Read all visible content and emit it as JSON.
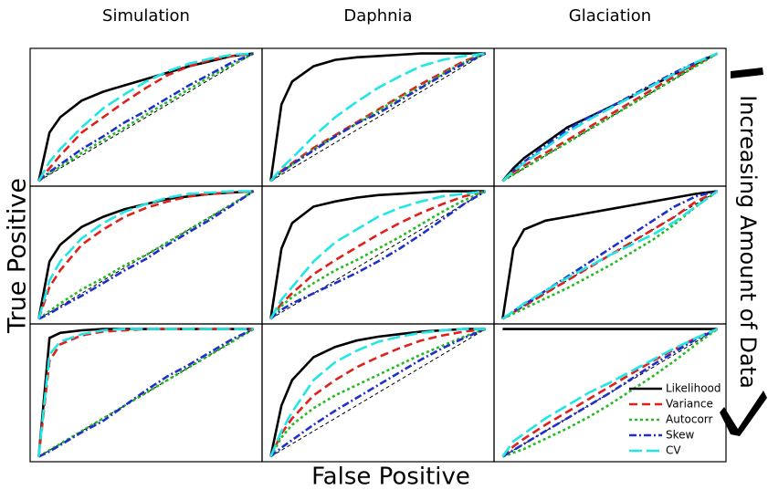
{
  "x_label": "False Positive",
  "y_label": "True Positive",
  "side_label": "Increasing Amount of Data",
  "chart_data": [
    {
      "type": "line",
      "title": "Simulation",
      "xlim": [
        -0.04,
        1.04
      ],
      "ylim": [
        -0.04,
        1.04
      ],
      "x": [
        0,
        0.05,
        0.1,
        0.2,
        0.3,
        0.4,
        0.5,
        0.6,
        0.7,
        0.8,
        0.9,
        1
      ],
      "series": [
        {
          "color": "#000000",
          "dash": "solid",
          "values": [
            0,
            0.38,
            0.5,
            0.63,
            0.7,
            0.75,
            0.8,
            0.85,
            0.9,
            0.94,
            0.98,
            1
          ]
        },
        {
          "color": "#e0201b",
          "dash": "dashed",
          "values": [
            0,
            0.1,
            0.2,
            0.38,
            0.5,
            0.62,
            0.73,
            0.83,
            0.9,
            0.95,
            0.98,
            1
          ]
        },
        {
          "color": "#22bb22",
          "dash": "dotted",
          "values": [
            0,
            0.06,
            0.11,
            0.22,
            0.32,
            0.42,
            0.52,
            0.62,
            0.72,
            0.82,
            0.91,
            1
          ]
        },
        {
          "color": "#1f2fcc",
          "dash": "dashdot",
          "values": [
            0,
            0.07,
            0.13,
            0.25,
            0.35,
            0.46,
            0.55,
            0.65,
            0.75,
            0.84,
            0.93,
            1
          ]
        },
        {
          "color": "#22e5e5",
          "dash": "longdash",
          "values": [
            0,
            0.15,
            0.25,
            0.42,
            0.57,
            0.68,
            0.78,
            0.86,
            0.92,
            0.96,
            0.99,
            1
          ]
        }
      ]
    },
    {
      "type": "line",
      "title": "Daphnia",
      "xlim": [
        -0.04,
        1.04
      ],
      "ylim": [
        -0.04,
        1.04
      ],
      "x": [
        0,
        0.05,
        0.1,
        0.2,
        0.3,
        0.4,
        0.5,
        0.6,
        0.7,
        0.8,
        0.9,
        1
      ],
      "series": [
        {
          "color": "#000000",
          "dash": "solid",
          "values": [
            0,
            0.6,
            0.78,
            0.9,
            0.95,
            0.97,
            0.98,
            0.99,
            1,
            1,
            1,
            1
          ]
        },
        {
          "color": "#e0201b",
          "dash": "dashed",
          "values": [
            0,
            0.08,
            0.14,
            0.26,
            0.36,
            0.46,
            0.56,
            0.66,
            0.76,
            0.85,
            0.94,
            1
          ]
        },
        {
          "color": "#22bb22",
          "dash": "dotted",
          "values": [
            0,
            0.07,
            0.13,
            0.25,
            0.35,
            0.45,
            0.55,
            0.65,
            0.74,
            0.84,
            0.93,
            1
          ]
        },
        {
          "color": "#1f2fcc",
          "dash": "dashdot",
          "values": [
            0,
            0.07,
            0.13,
            0.24,
            0.35,
            0.45,
            0.53,
            0.63,
            0.73,
            0.83,
            0.92,
            1
          ]
        },
        {
          "color": "#22e5e5",
          "dash": "longdash",
          "values": [
            0,
            0.1,
            0.18,
            0.35,
            0.5,
            0.62,
            0.73,
            0.82,
            0.9,
            0.95,
            0.98,
            1
          ]
        }
      ]
    },
    {
      "type": "line",
      "title": "Glaciation",
      "xlim": [
        -0.04,
        1.04
      ],
      "ylim": [
        -0.04,
        1.04
      ],
      "x": [
        0,
        0.05,
        0.1,
        0.2,
        0.3,
        0.4,
        0.5,
        0.6,
        0.7,
        0.8,
        0.9,
        1
      ],
      "series": [
        {
          "color": "#000000",
          "dash": "solid",
          "values": [
            0,
            0.1,
            0.18,
            0.3,
            0.42,
            0.5,
            0.58,
            0.66,
            0.75,
            0.84,
            0.92,
            1
          ]
        },
        {
          "color": "#e0201b",
          "dash": "dashed",
          "values": [
            0,
            0.07,
            0.12,
            0.22,
            0.32,
            0.42,
            0.52,
            0.62,
            0.72,
            0.82,
            0.91,
            1
          ]
        },
        {
          "color": "#22bb22",
          "dash": "dotted",
          "values": [
            0,
            0.05,
            0.1,
            0.2,
            0.3,
            0.4,
            0.5,
            0.6,
            0.7,
            0.8,
            0.9,
            1
          ]
        },
        {
          "color": "#1f2fcc",
          "dash": "dashdot",
          "values": [
            0,
            0.08,
            0.15,
            0.28,
            0.4,
            0.5,
            0.58,
            0.67,
            0.76,
            0.85,
            0.93,
            1
          ]
        },
        {
          "color": "#22e5e5",
          "dash": "longdash",
          "values": [
            0,
            0.08,
            0.14,
            0.26,
            0.38,
            0.48,
            0.57,
            0.66,
            0.75,
            0.84,
            0.93,
            1
          ]
        }
      ]
    },
    {
      "type": "line",
      "xlim": [
        -0.04,
        1.04
      ],
      "ylim": [
        -0.04,
        1.04
      ],
      "x": [
        0,
        0.05,
        0.1,
        0.2,
        0.3,
        0.4,
        0.5,
        0.6,
        0.7,
        0.8,
        0.9,
        1
      ],
      "series": [
        {
          "color": "#000000",
          "dash": "solid",
          "values": [
            0,
            0.45,
            0.58,
            0.72,
            0.8,
            0.86,
            0.9,
            0.94,
            0.96,
            0.98,
            0.99,
            1
          ]
        },
        {
          "color": "#e0201b",
          "dash": "dashed",
          "values": [
            0,
            0.25,
            0.38,
            0.58,
            0.7,
            0.8,
            0.87,
            0.92,
            0.96,
            0.98,
            0.99,
            1
          ]
        },
        {
          "color": "#22bb22",
          "dash": "dotted",
          "values": [
            0,
            0.06,
            0.12,
            0.23,
            0.32,
            0.42,
            0.5,
            0.6,
            0.7,
            0.8,
            0.9,
            1
          ]
        },
        {
          "color": "#1f2fcc",
          "dash": "dashdot",
          "values": [
            0,
            0.04,
            0.09,
            0.18,
            0.28,
            0.38,
            0.47,
            0.58,
            0.68,
            0.78,
            0.89,
            1
          ]
        },
        {
          "color": "#22e5e5",
          "dash": "longdash",
          "values": [
            0,
            0.3,
            0.45,
            0.63,
            0.75,
            0.84,
            0.9,
            0.95,
            0.98,
            0.99,
            1,
            1
          ]
        }
      ]
    },
    {
      "type": "line",
      "xlim": [
        -0.04,
        1.04
      ],
      "ylim": [
        -0.04,
        1.04
      ],
      "x": [
        0,
        0.05,
        0.1,
        0.2,
        0.3,
        0.4,
        0.5,
        0.6,
        0.7,
        0.8,
        0.9,
        1
      ],
      "series": [
        {
          "color": "#000000",
          "dash": "solid",
          "values": [
            0,
            0.55,
            0.75,
            0.88,
            0.92,
            0.95,
            0.97,
            0.98,
            0.99,
            1,
            1,
            1
          ]
        },
        {
          "color": "#e0201b",
          "dash": "dashed",
          "values": [
            0,
            0.12,
            0.2,
            0.35,
            0.46,
            0.56,
            0.66,
            0.75,
            0.83,
            0.9,
            0.96,
            1
          ]
        },
        {
          "color": "#22bb22",
          "dash": "dotted",
          "values": [
            0,
            0.1,
            0.17,
            0.28,
            0.38,
            0.46,
            0.55,
            0.64,
            0.74,
            0.84,
            0.93,
            1
          ]
        },
        {
          "color": "#1f2fcc",
          "dash": "dashdot",
          "values": [
            0,
            0.07,
            0.12,
            0.2,
            0.28,
            0.36,
            0.45,
            0.55,
            0.66,
            0.78,
            0.9,
            1
          ]
        },
        {
          "color": "#22e5e5",
          "dash": "longdash",
          "values": [
            0,
            0.15,
            0.25,
            0.45,
            0.6,
            0.7,
            0.8,
            0.87,
            0.92,
            0.96,
            0.98,
            1
          ]
        }
      ]
    },
    {
      "type": "line",
      "xlim": [
        -0.04,
        1.04
      ],
      "ylim": [
        -0.04,
        1.04
      ],
      "x": [
        0,
        0.05,
        0.1,
        0.2,
        0.3,
        0.4,
        0.5,
        0.6,
        0.7,
        0.8,
        0.9,
        1
      ],
      "series": [
        {
          "color": "#000000",
          "dash": "solid",
          "values": [
            0,
            0.55,
            0.7,
            0.77,
            0.8,
            0.83,
            0.86,
            0.89,
            0.92,
            0.95,
            0.98,
            1
          ]
        },
        {
          "color": "#e0201b",
          "dash": "dashed",
          "values": [
            0,
            0.05,
            0.1,
            0.2,
            0.3,
            0.4,
            0.5,
            0.6,
            0.7,
            0.8,
            0.92,
            1
          ]
        },
        {
          "color": "#22bb22",
          "dash": "dotted",
          "values": [
            0,
            0.04,
            0.08,
            0.16,
            0.24,
            0.33,
            0.42,
            0.52,
            0.62,
            0.74,
            0.88,
            1
          ]
        },
        {
          "color": "#1f2fcc",
          "dash": "dashdot",
          "values": [
            0,
            0.06,
            0.11,
            0.22,
            0.33,
            0.44,
            0.55,
            0.66,
            0.77,
            0.88,
            0.96,
            1
          ]
        },
        {
          "color": "#22e5e5",
          "dash": "longdash",
          "values": [
            0,
            0.06,
            0.12,
            0.22,
            0.32,
            0.41,
            0.5,
            0.58,
            0.66,
            0.76,
            0.88,
            1
          ]
        }
      ]
    },
    {
      "type": "line",
      "xlim": [
        -0.04,
        1.04
      ],
      "ylim": [
        -0.04,
        1.04
      ],
      "x": [
        0,
        0.05,
        0.1,
        0.2,
        0.3,
        0.4,
        0.5,
        0.6,
        0.7,
        0.8,
        0.9,
        1
      ],
      "series": [
        {
          "color": "#000000",
          "dash": "solid",
          "values": [
            0,
            0.93,
            0.97,
            0.99,
            1,
            1,
            1,
            1,
            1,
            1,
            1,
            1
          ]
        },
        {
          "color": "#e0201b",
          "dash": "dashed",
          "values": [
            0,
            0.75,
            0.88,
            0.95,
            0.98,
            0.99,
            1,
            1,
            1,
            1,
            1,
            1
          ]
        },
        {
          "color": "#22bb22",
          "dash": "dotted",
          "values": [
            0,
            0.05,
            0.1,
            0.2,
            0.3,
            0.4,
            0.5,
            0.6,
            0.7,
            0.8,
            0.9,
            1
          ]
        },
        {
          "color": "#1f2fcc",
          "dash": "dashdot",
          "values": [
            0,
            0.04,
            0.09,
            0.19,
            0.28,
            0.4,
            0.52,
            0.63,
            0.72,
            0.82,
            0.92,
            1
          ]
        },
        {
          "color": "#22e5e5",
          "dash": "longdash",
          "values": [
            0,
            0.8,
            0.9,
            0.96,
            0.99,
            1,
            1,
            1,
            1,
            1,
            1,
            1
          ]
        }
      ]
    },
    {
      "type": "line",
      "xlim": [
        -0.04,
        1.04
      ],
      "ylim": [
        -0.04,
        1.04
      ],
      "x": [
        0,
        0.05,
        0.1,
        0.2,
        0.3,
        0.4,
        0.5,
        0.6,
        0.7,
        0.8,
        0.9,
        1
      ],
      "series": [
        {
          "color": "#000000",
          "dash": "solid",
          "values": [
            0,
            0.4,
            0.6,
            0.78,
            0.86,
            0.91,
            0.94,
            0.96,
            0.98,
            0.99,
            1,
            1
          ]
        },
        {
          "color": "#e0201b",
          "dash": "dashed",
          "values": [
            0,
            0.18,
            0.3,
            0.48,
            0.6,
            0.7,
            0.78,
            0.85,
            0.91,
            0.95,
            0.98,
            1
          ]
        },
        {
          "color": "#22bb22",
          "dash": "dotted",
          "values": [
            0,
            0.15,
            0.25,
            0.38,
            0.48,
            0.56,
            0.64,
            0.72,
            0.8,
            0.87,
            0.94,
            1
          ]
        },
        {
          "color": "#1f2fcc",
          "dash": "dashdot",
          "values": [
            0,
            0.07,
            0.13,
            0.25,
            0.36,
            0.46,
            0.56,
            0.66,
            0.76,
            0.85,
            0.93,
            1
          ]
        },
        {
          "color": "#22e5e5",
          "dash": "longdash",
          "values": [
            0,
            0.2,
            0.35,
            0.6,
            0.74,
            0.83,
            0.9,
            0.94,
            0.97,
            0.99,
            1,
            1
          ]
        }
      ]
    },
    {
      "type": "line",
      "xlim": [
        -0.04,
        1.04
      ],
      "ylim": [
        -0.04,
        1.04
      ],
      "x": [
        0,
        0.05,
        0.1,
        0.2,
        0.3,
        0.4,
        0.5,
        0.6,
        0.7,
        0.8,
        0.9,
        1
      ],
      "series": [
        {
          "name": "Likelihood",
          "color": "#000000",
          "dash": "solid",
          "values": [
            1,
            1,
            1,
            1,
            1,
            1,
            1,
            1,
            1,
            1,
            1,
            1
          ]
        },
        {
          "name": "Variance",
          "color": "#e0201b",
          "dash": "dashed",
          "values": [
            0,
            0.08,
            0.14,
            0.25,
            0.35,
            0.45,
            0.55,
            0.65,
            0.75,
            0.84,
            0.93,
            1
          ]
        },
        {
          "name": "Autocorr",
          "color": "#22bb22",
          "dash": "dotted",
          "values": [
            0,
            0.03,
            0.06,
            0.14,
            0.22,
            0.31,
            0.41,
            0.52,
            0.63,
            0.75,
            0.88,
            1
          ]
        },
        {
          "name": "Skew",
          "color": "#1f2fcc",
          "dash": "dashdot",
          "values": [
            0,
            0.05,
            0.1,
            0.2,
            0.3,
            0.4,
            0.5,
            0.61,
            0.72,
            0.82,
            0.92,
            1
          ]
        },
        {
          "name": "CV",
          "color": "#22e5e5",
          "dash": "longdash",
          "values": [
            0,
            0.12,
            0.18,
            0.3,
            0.4,
            0.5,
            0.58,
            0.67,
            0.76,
            0.85,
            0.93,
            1
          ]
        }
      ]
    }
  ]
}
